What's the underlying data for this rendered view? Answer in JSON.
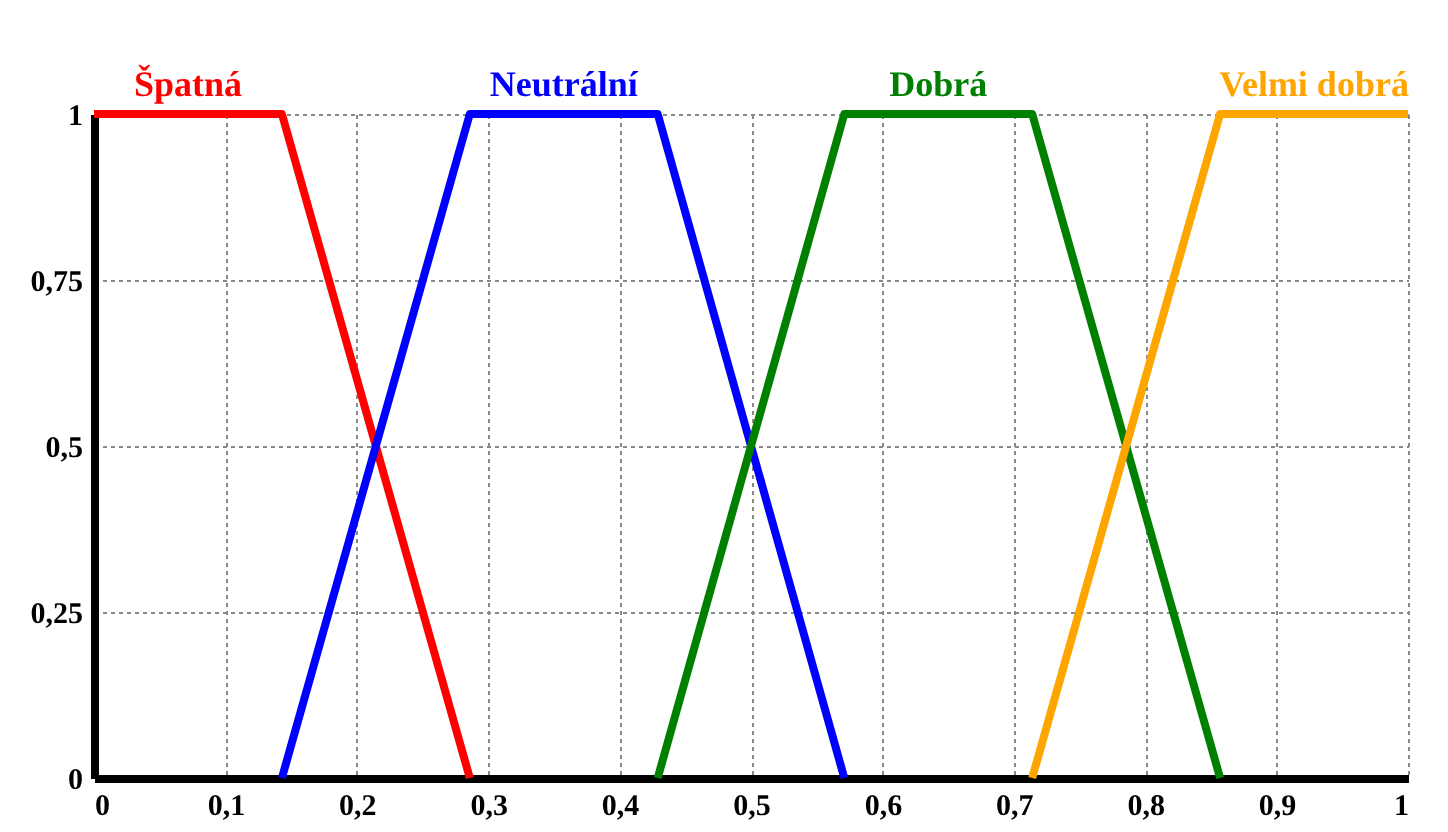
{
  "chart_data": {
    "type": "line",
    "series": [
      {
        "name": "Špatná",
        "color": "#ff0000",
        "x": [
          0,
          0.143,
          0.286
        ],
        "values": [
          1,
          1,
          0
        ]
      },
      {
        "name": "Neutrální",
        "color": "#0000ff",
        "x": [
          0.143,
          0.286,
          0.429,
          0.571
        ],
        "values": [
          0,
          1,
          1,
          0
        ]
      },
      {
        "name": "Dobrá",
        "color": "#008000",
        "x": [
          0.429,
          0.571,
          0.714,
          0.857
        ],
        "values": [
          0,
          1,
          1,
          0
        ]
      },
      {
        "name": "Velmi dobrá",
        "color": "#ffa500",
        "x": [
          0.714,
          0.857,
          1
        ],
        "values": [
          0,
          1,
          1
        ]
      }
    ],
    "xlim": [
      0,
      1
    ],
    "ylim": [
      0,
      1
    ],
    "xticks": [
      0,
      {
        "value": 0.1,
        "label": "0,1"
      },
      {
        "value": 0.2,
        "label": "0,2"
      },
      {
        "value": 0.3,
        "label": "0,3"
      },
      {
        "value": 0.4,
        "label": "0,4"
      },
      {
        "value": 0.5,
        "label": "0,5"
      },
      {
        "value": 0.6,
        "label": "0,6"
      },
      {
        "value": 0.7,
        "label": "0,7"
      },
      {
        "value": 0.8,
        "label": "0,8"
      },
      {
        "value": 0.9,
        "label": "0,9"
      },
      1
    ],
    "yticks": [
      0,
      {
        "value": 0.25,
        "label": "0,25"
      },
      {
        "value": 0.5,
        "label": "0,5"
      },
      {
        "value": 0.75,
        "label": "0,75"
      },
      1
    ],
    "grid": true,
    "legend": false,
    "marker": "none",
    "line_style": "solid"
  }
}
